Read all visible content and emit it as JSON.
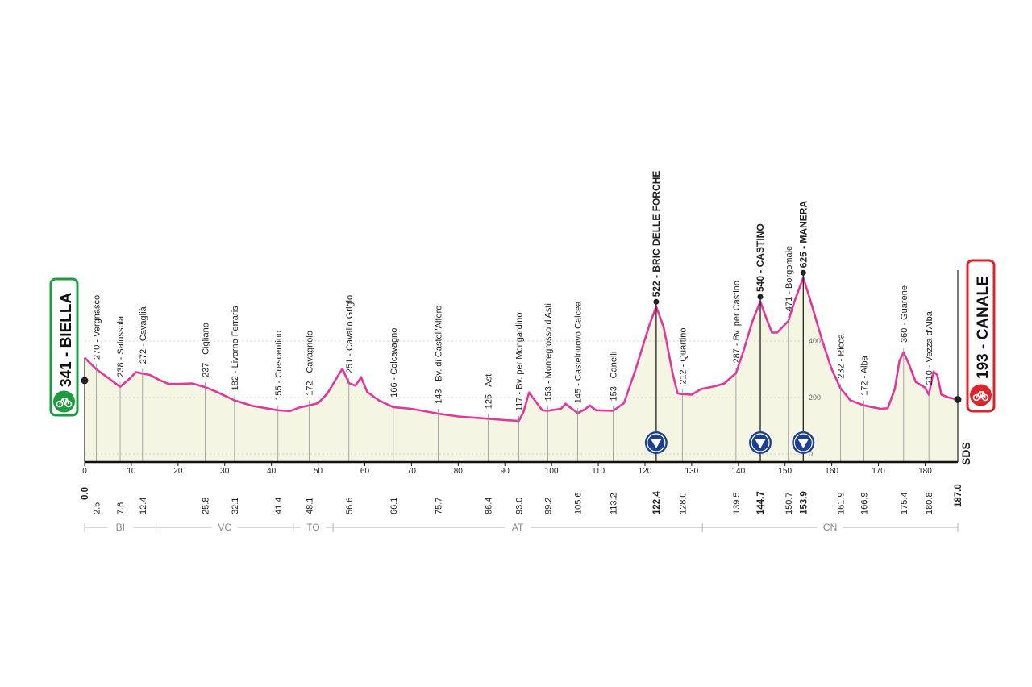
{
  "chart_data": {
    "type": "area",
    "distance_km": 187.0,
    "start": {
      "altitude": 341,
      "name": "BIELLA",
      "label": "341 - BIELLA"
    },
    "finish": {
      "altitude": 193,
      "name": "CANALE",
      "label": "193 - CANALE"
    },
    "x_ticks": [
      0,
      10,
      20,
      30,
      40,
      50,
      60,
      70,
      80,
      90,
      100,
      110,
      120,
      130,
      140,
      150,
      160,
      170,
      180
    ],
    "altitude_scale": [
      {
        "value": 0,
        "label": "0"
      },
      {
        "value": 200,
        "label": "200"
      },
      {
        "value": 400,
        "label": "400"
      }
    ],
    "waypoints": [
      {
        "km": 2.5,
        "km_label": "2.5",
        "alt": 270,
        "label": "270 - Vergnasco",
        "bold": false
      },
      {
        "km": 7.6,
        "km_label": "7.6",
        "alt": 238,
        "label": "238 - Salussola",
        "bold": false
      },
      {
        "km": 12.4,
        "km_label": "12.4",
        "alt": 272,
        "label": "272 - Cavaglià",
        "bold": false
      },
      {
        "km": 25.8,
        "km_label": "25.8",
        "alt": 237,
        "label": "237 - Cigliano",
        "bold": false
      },
      {
        "km": 32.1,
        "km_label": "32.1",
        "alt": 182,
        "label": "182 - Livorno Ferraris",
        "bold": false
      },
      {
        "km": 41.4,
        "km_label": "41.4",
        "alt": 155,
        "label": "155 - Crescentino",
        "bold": false
      },
      {
        "km": 48.1,
        "km_label": "48.1",
        "alt": 172,
        "label": "172 - Cavagnolo",
        "bold": false
      },
      {
        "km": 56.6,
        "km_label": "56.6",
        "alt": 251,
        "label": "251 - Cavallo Grigio",
        "bold": false
      },
      {
        "km": 66.1,
        "km_label": "66.1",
        "alt": 166,
        "label": "166 - Colcavagno",
        "bold": false
      },
      {
        "km": 75.7,
        "km_label": "75.7",
        "alt": 143,
        "label": "143 - Bv. di Castell'Alfero",
        "bold": false
      },
      {
        "km": 86.4,
        "km_label": "86.4",
        "alt": 125,
        "label": "125 - Asti",
        "bold": false
      },
      {
        "km": 93.0,
        "km_label": "93.0",
        "alt": 117,
        "label": "117 - Bv. per Mongardino",
        "bold": false
      },
      {
        "km": 99.2,
        "km_label": "99.2",
        "alt": 153,
        "label": "153 - Montegrosso d'Asti",
        "bold": false
      },
      {
        "km": 105.6,
        "km_label": "105.6",
        "alt": 145,
        "label": "145 - Castelnuovo Calcea",
        "bold": false
      },
      {
        "km": 113.2,
        "km_label": "113.2",
        "alt": 153,
        "label": "153 - Canelli",
        "bold": false
      },
      {
        "km": 122.4,
        "km_label": "122.4",
        "alt": 522,
        "label": "522 - BRIC DELLE FORCHE",
        "bold": true,
        "gpm": true
      },
      {
        "km": 128.0,
        "km_label": "128.0",
        "alt": 212,
        "label": "212 - Quartino",
        "bold": false
      },
      {
        "km": 139.5,
        "km_label": "139.5",
        "alt": 287,
        "label": "287 - Bv. per Castino",
        "bold": false
      },
      {
        "km": 144.7,
        "km_label": "144.7",
        "alt": 540,
        "label": "540 - CASTINO",
        "bold": true,
        "gpm": true
      },
      {
        "km": 150.7,
        "km_label": "150.7",
        "alt": 471,
        "label": "471 - Borgomale",
        "bold": false
      },
      {
        "km": 153.9,
        "km_label": "153.9",
        "alt": 625,
        "label": "625 - MANERA",
        "bold": true,
        "gpm": true
      },
      {
        "km": 161.9,
        "km_label": "161.9",
        "alt": 232,
        "label": "232 - Ricca",
        "bold": false
      },
      {
        "km": 166.9,
        "km_label": "166.9",
        "alt": 172,
        "label": "172 - Alba",
        "bold": false
      },
      {
        "km": 175.4,
        "km_label": "175.4",
        "alt": 360,
        "label": "360 - Guarene",
        "bold": false
      },
      {
        "km": 180.8,
        "km_label": "180.8",
        "alt": 210,
        "label": "210 - Vezza d'Alba",
        "bold": false
      }
    ],
    "profile": [
      [
        0,
        341
      ],
      [
        2.5,
        300
      ],
      [
        5,
        270
      ],
      [
        7.6,
        238
      ],
      [
        9.5,
        265
      ],
      [
        11,
        290
      ],
      [
        12.4,
        285
      ],
      [
        14,
        280
      ],
      [
        16,
        262
      ],
      [
        18,
        248
      ],
      [
        20,
        248
      ],
      [
        23,
        250
      ],
      [
        25.8,
        237
      ],
      [
        28,
        222
      ],
      [
        32.1,
        190
      ],
      [
        36,
        170
      ],
      [
        41.4,
        155
      ],
      [
        44,
        152
      ],
      [
        46,
        165
      ],
      [
        48.1,
        172
      ],
      [
        50,
        180
      ],
      [
        52,
        215
      ],
      [
        54,
        270
      ],
      [
        55.2,
        302
      ],
      [
        56.6,
        251
      ],
      [
        58,
        242
      ],
      [
        59.2,
        272
      ],
      [
        60.5,
        220
      ],
      [
        63,
        190
      ],
      [
        66.1,
        166
      ],
      [
        70,
        160
      ],
      [
        75.7,
        143
      ],
      [
        80,
        133
      ],
      [
        86.4,
        125
      ],
      [
        90,
        120
      ],
      [
        93.0,
        117
      ],
      [
        94,
        150
      ],
      [
        95.2,
        218
      ],
      [
        96.5,
        188
      ],
      [
        98,
        155
      ],
      [
        99.2,
        153
      ],
      [
        102,
        160
      ],
      [
        103,
        178
      ],
      [
        104,
        165
      ],
      [
        105.6,
        145
      ],
      [
        107,
        157
      ],
      [
        108.2,
        172
      ],
      [
        109.5,
        155
      ],
      [
        113.2,
        153
      ],
      [
        115.5,
        180
      ],
      [
        118,
        300
      ],
      [
        121,
        460
      ],
      [
        122.4,
        522
      ],
      [
        124,
        450
      ],
      [
        126,
        280
      ],
      [
        127,
        215
      ],
      [
        128,
        212
      ],
      [
        130,
        210
      ],
      [
        132,
        230
      ],
      [
        135,
        240
      ],
      [
        137,
        250
      ],
      [
        139.5,
        287
      ],
      [
        141,
        360
      ],
      [
        143,
        470
      ],
      [
        144.7,
        540
      ],
      [
        146,
        480
      ],
      [
        147.2,
        430
      ],
      [
        148.3,
        430
      ],
      [
        150.7,
        471
      ],
      [
        152,
        540
      ],
      [
        153.9,
        625
      ],
      [
        155.5,
        540
      ],
      [
        158,
        400
      ],
      [
        160,
        300
      ],
      [
        161.9,
        232
      ],
      [
        164,
        190
      ],
      [
        166.9,
        172
      ],
      [
        169,
        165
      ],
      [
        170.5,
        160
      ],
      [
        172,
        162
      ],
      [
        173.5,
        230
      ],
      [
        174.5,
        330
      ],
      [
        175.4,
        360
      ],
      [
        176.5,
        320
      ],
      [
        178,
        255
      ],
      [
        180,
        235
      ],
      [
        180.8,
        210
      ],
      [
        181.8,
        292
      ],
      [
        182.6,
        280
      ],
      [
        183.5,
        210
      ],
      [
        185,
        200
      ],
      [
        187,
        193
      ]
    ],
    "regions": [
      {
        "label": "BI",
        "start": 0,
        "end": 15.3
      },
      {
        "label": "VC",
        "start": 15.3,
        "end": 44.7
      },
      {
        "label": "TO",
        "start": 44.7,
        "end": 53.2
      },
      {
        "label": "AT",
        "start": 53.2,
        "end": 132.3
      },
      {
        "label": "CN",
        "start": 132.3,
        "end": 187
      }
    ],
    "logo": "SDS"
  },
  "colors": {
    "profile_line": "#e2379b",
    "area_fill": "#f5f5e4",
    "start_green": "#1f9a3e",
    "finish_red": "#d9262c",
    "gpm_blue": "#1d3f8f"
  },
  "icons": {
    "start": "bicycle-icon",
    "finish": "finish-bicycle-icon",
    "gpm": "climb-triangle-icon"
  }
}
